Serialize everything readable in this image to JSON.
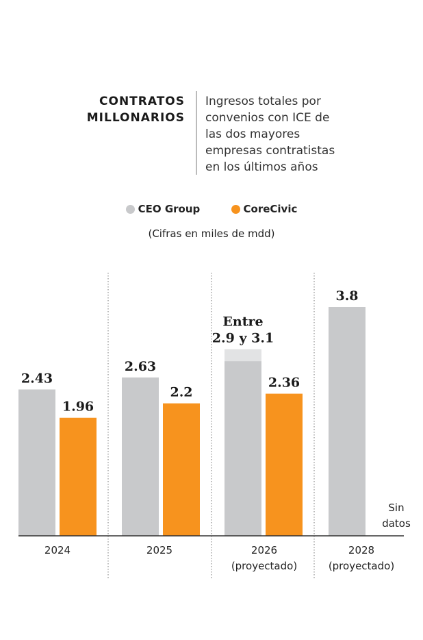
{
  "title": "CONTRATOS MILLONARIOS",
  "subtitle_lines": [
    "Ingresos totales por",
    "convenios con ICE de",
    "las dos mayores",
    "empresas contratistas",
    "en los últimos años"
  ],
  "legend": [
    {
      "label": "CEO Group",
      "color": "#c8c9cb"
    },
    {
      "label": "CoreCivic",
      "color": "#f7931e"
    }
  ],
  "note": "(Cifras en miles de mdd)",
  "chart_data": {
    "type": "bar",
    "categories": [
      [
        "2024"
      ],
      [
        "2025"
      ],
      [
        "2026",
        "(proyectado)"
      ],
      [
        "2028",
        "(proyectado)"
      ]
    ],
    "ylim": [
      0,
      3.8
    ],
    "range_color": "#e2e3e4",
    "series": [
      {
        "name": "CEO Group",
        "color": "#c8c9cb",
        "values": [
          2.43,
          2.63,
          2.9,
          3.8
        ],
        "range_high": [
          null,
          null,
          3.1,
          null
        ],
        "labels": [
          [
            "2.43"
          ],
          [
            "2.63"
          ],
          [
            "Entre",
            "2.9 y 3.1"
          ],
          [
            "3.8"
          ]
        ]
      },
      {
        "name": "CoreCivic",
        "color": "#f7931e",
        "values": [
          1.96,
          2.2,
          2.36,
          null
        ],
        "labels": [
          [
            "1.96"
          ],
          [
            "2.2"
          ],
          [
            "2.36"
          ],
          [
            "Sin",
            "datos"
          ]
        ]
      }
    ]
  }
}
